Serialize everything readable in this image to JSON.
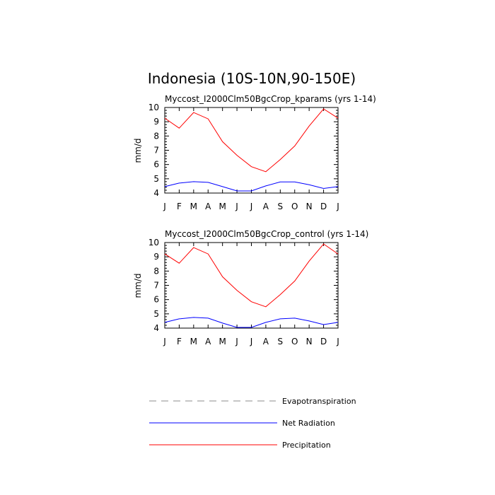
{
  "figure": {
    "title": "Indonesia (10S-10N,90-150E)"
  },
  "legend": {
    "placement": "bottom-center",
    "items": [
      {
        "label": "Evapotranspiration",
        "color": "#8c8c8c",
        "style": "dashed"
      },
      {
        "label": "Net Radiation",
        "color": "#0000ff",
        "style": "solid"
      },
      {
        "label": "Precipitation",
        "color": "#ff0000",
        "style": "solid"
      }
    ]
  },
  "chart_data": [
    {
      "type": "line",
      "title": "Myccost_I2000Clm50BgcCrop_kparams (yrs 1-14)",
      "ylabel": "mm/d",
      "xlabel": "",
      "ylim": [
        4,
        10
      ],
      "yticks": [
        4,
        5,
        6,
        7,
        8,
        9,
        10
      ],
      "categories": [
        "J",
        "F",
        "M",
        "A",
        "M",
        "J",
        "J",
        "A",
        "S",
        "O",
        "N",
        "D",
        "J"
      ],
      "grid": false,
      "series": [
        {
          "name": "Precipitation",
          "color": "#ff0000",
          "values": [
            9.25,
            8.55,
            9.65,
            9.2,
            7.6,
            6.65,
            5.85,
            5.5,
            6.35,
            7.3,
            8.7,
            9.9,
            9.25
          ]
        },
        {
          "name": "Net Radiation",
          "color": "#0000ff",
          "values": [
            4.45,
            4.7,
            4.8,
            4.75,
            4.45,
            4.15,
            4.15,
            4.5,
            4.78,
            4.78,
            4.58,
            4.32,
            4.45
          ]
        }
      ]
    },
    {
      "type": "line",
      "title": "Myccost_I2000Clm50BgcCrop_control (yrs 1-14)",
      "ylabel": "mm/d",
      "xlabel": "",
      "ylim": [
        4,
        10
      ],
      "yticks": [
        4,
        5,
        6,
        7,
        8,
        9,
        10
      ],
      "categories": [
        "J",
        "F",
        "M",
        "A",
        "M",
        "J",
        "J",
        "A",
        "S",
        "O",
        "N",
        "D",
        "J"
      ],
      "grid": false,
      "series": [
        {
          "name": "Precipitation",
          "color": "#ff0000",
          "values": [
            9.2,
            8.55,
            9.65,
            9.2,
            7.6,
            6.65,
            5.85,
            5.5,
            6.35,
            7.3,
            8.7,
            9.9,
            9.2
          ]
        },
        {
          "name": "Net Radiation",
          "color": "#0000ff",
          "values": [
            4.4,
            4.65,
            4.75,
            4.7,
            4.35,
            4.05,
            4.05,
            4.4,
            4.65,
            4.7,
            4.5,
            4.25,
            4.4
          ]
        }
      ]
    }
  ]
}
